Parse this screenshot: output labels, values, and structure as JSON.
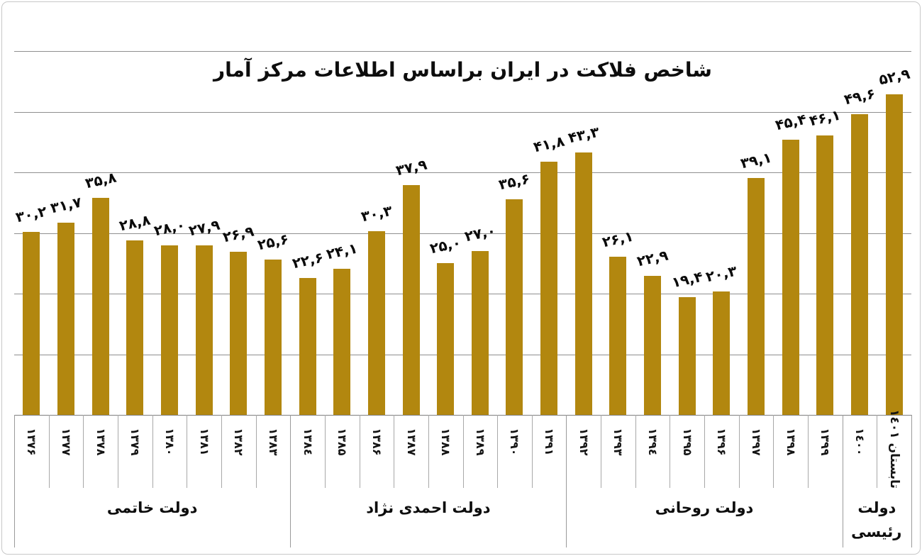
{
  "title": "شاخص فلاکت در ایران براساس اطلاعات مرکز آمار",
  "colors": {
    "bar": "#b2870f",
    "gridline": "#8f8f8f",
    "divider": "#a8a8a8",
    "text": "#0d0d0d",
    "frame_border": "#c8c8c8",
    "background": "#ffffff"
  },
  "chart_data": {
    "type": "bar",
    "title": "شاخص فلاکت در ایران براساس اطلاعات مرکز آمار",
    "xlabel": "",
    "ylabel": "",
    "ylim": [
      0,
      60
    ],
    "grid": "on",
    "grid_step": 10,
    "legend": "none",
    "y_axis_tick_labels": "none",
    "categories": [
      "۱۳۷۶",
      "۱۳۷۷",
      "۱۳۷۸",
      "۱۳۷۹",
      "۱۳۸۰",
      "۱۳۸۱",
      "۱۳۸۲",
      "۱۳۸۳",
      "١٣٨٤",
      "۱۳۸۵",
      "۱۳۸۶",
      "۱۳۸۷",
      "۱۳۸۸",
      "۱۳۸۹",
      "۱۳۹۰",
      "۱۳۹۱",
      "۱۳۹۲",
      "۱۳۹۳",
      "١٣٩٤",
      "۱۳۹۵",
      "۱۳۹۶",
      "۱۳۹۷",
      "۱۳۹۸",
      "۱۳۹۹",
      "١٤٠٠",
      "تابستان ١٤٠١"
    ],
    "values": [
      30.2,
      31.7,
      35.8,
      28.8,
      28.0,
      27.9,
      26.9,
      25.6,
      22.6,
      24.1,
      30.3,
      37.9,
      25.0,
      27.0,
      35.6,
      41.8,
      43.3,
      26.1,
      22.9,
      19.4,
      20.3,
      39.1,
      45.4,
      46.1,
      49.6,
      52.9
    ],
    "value_labels": [
      "۳۰,۲",
      "۳۱,۷",
      "۳۵,۸",
      "۲۸,۸",
      "۲۸,۰",
      "۲۷,۹",
      "۲۶,۹",
      "۲۵,۶",
      "۲۲,۶",
      "۲۴,۱",
      "۳۰,۳",
      "۳۷,۹",
      "۲۵,۰",
      "۲۷,۰",
      "۳۵,۶",
      "۴۱,۸",
      "۴۳,۳",
      "۲۶,۱",
      "۲۲,۹",
      "۱۹,۴",
      "۲۰,۳",
      "۳۹,۱",
      "۴۵,۴",
      "۴۶,۱",
      "۴۹,۶",
      "۵۲,۹"
    ],
    "groups": [
      {
        "label": "دولت خاتمی",
        "span": 8
      },
      {
        "label": "دولت احمدی نژاد",
        "span": 8
      },
      {
        "label": "دولت روحانی",
        "span": 8
      },
      {
        "label": "دولت رئیسی",
        "span": 2
      }
    ]
  }
}
